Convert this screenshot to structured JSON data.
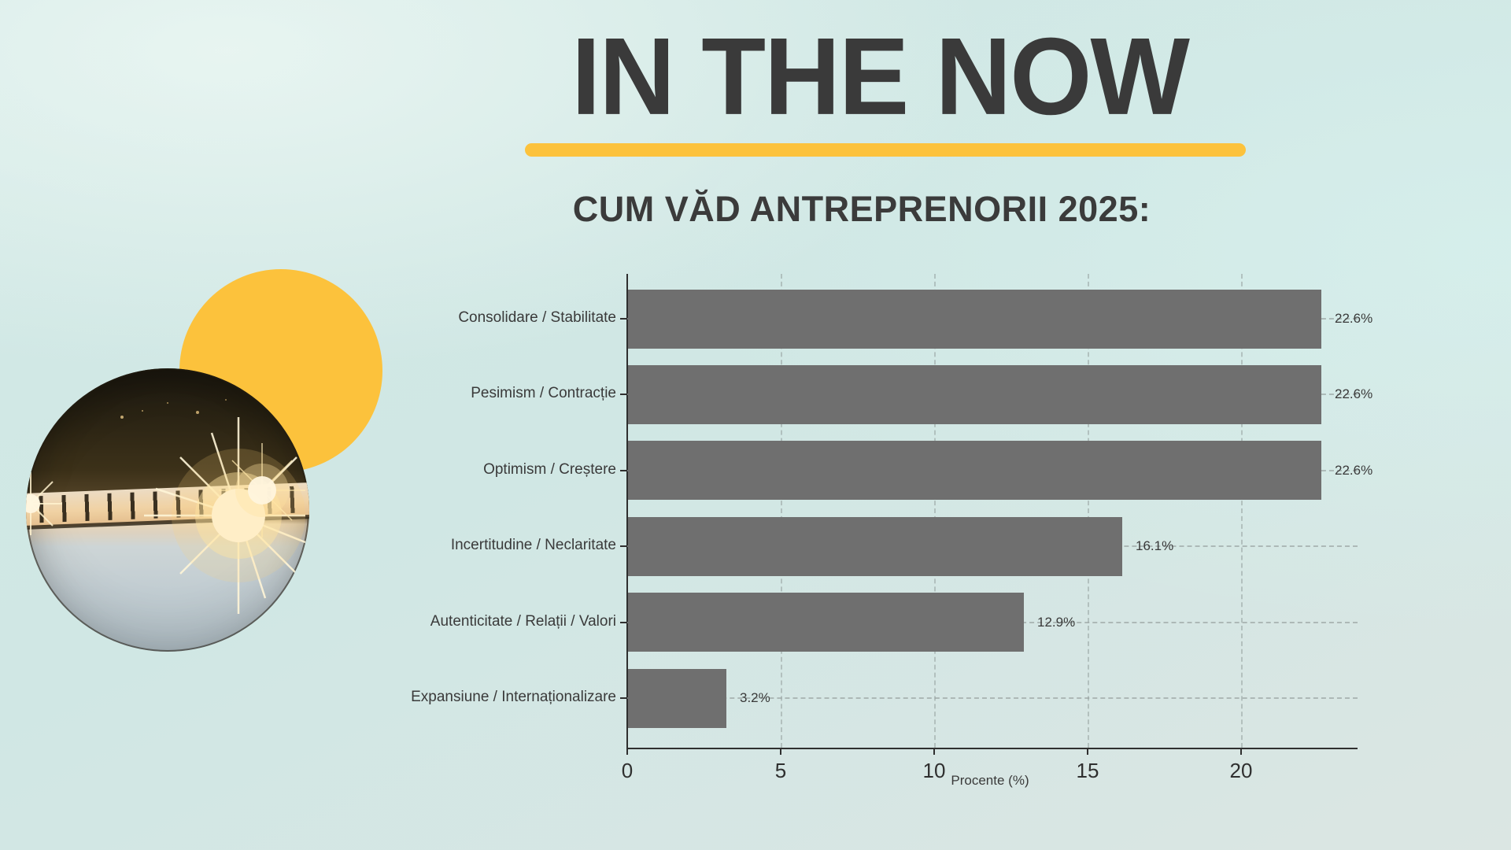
{
  "page": {
    "title": "IN THE NOW",
    "subtitle": "CUM VĂD ANTREPRENORII 2025:"
  },
  "colors": {
    "accent_yellow": "#fcc23c",
    "title_text": "#3a3a3a",
    "bar_fill": "#6f6f6f",
    "axis_color": "#2f2f2f",
    "background": "#d2e9e6"
  },
  "decor": {
    "yellow_circle": "yellow-sun-circle",
    "photo": "lens-ball-sunset-bridge-photo"
  },
  "chart_data": {
    "type": "bar",
    "orientation": "horizontal",
    "title": "",
    "categories": [
      "Consolidare / Stabilitate",
      "Pesimism / Contracție",
      "Optimism / Creștere",
      "Incertitudine / Neclaritate",
      "Autenticitate / Relații / Valori",
      "Expansiune / Internaționalizare"
    ],
    "values": [
      22.6,
      22.6,
      22.6,
      16.1,
      12.9,
      3.2
    ],
    "value_labels": [
      "22.6%",
      "22.6%",
      "22.6%",
      "16.1%",
      "12.9%",
      "3.2%"
    ],
    "xlabel": "Procente (%)",
    "ylabel": "",
    "xticks": [
      0,
      5,
      10,
      15,
      20
    ],
    "xlim": [
      0,
      23.8
    ],
    "grid": "dashed",
    "legend": "none",
    "bar_color": "#6f6f6f"
  }
}
